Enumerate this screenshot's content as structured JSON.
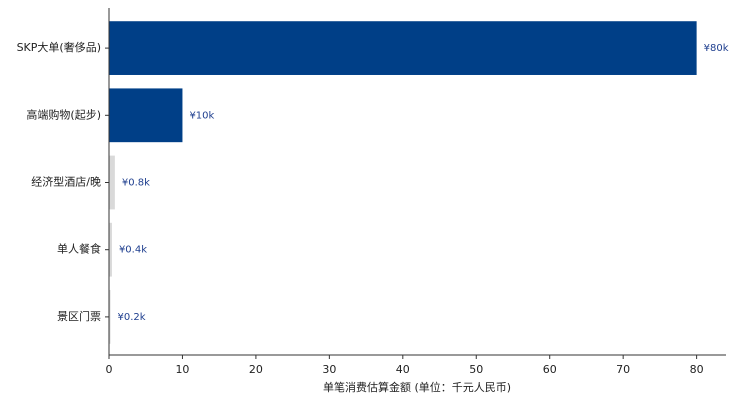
{
  "chart_data": {
    "type": "barh",
    "x_label": "单笔消费估算金额 (单位：千元人民币)",
    "categories": [
      "SKP大单(奢侈品)",
      "高端购物(起步)",
      "经济型酒店/晚",
      "单人餐食",
      "景区门票"
    ],
    "values": [
      80,
      10,
      0.8,
      0.4,
      0.2
    ],
    "value_labels": [
      "¥80k",
      "¥10k",
      "¥0.8k",
      "¥0.4k",
      "¥0.2k"
    ],
    "colors": [
      "#003f87",
      "#003f87",
      "#d9d9d9",
      "#d9d9d9",
      "#d9d9d9"
    ],
    "label_color": "#1f3f8f",
    "xlim": [
      0,
      84
    ],
    "xticks": [
      0,
      10,
      20,
      30,
      40,
      50,
      60,
      70,
      80
    ]
  }
}
